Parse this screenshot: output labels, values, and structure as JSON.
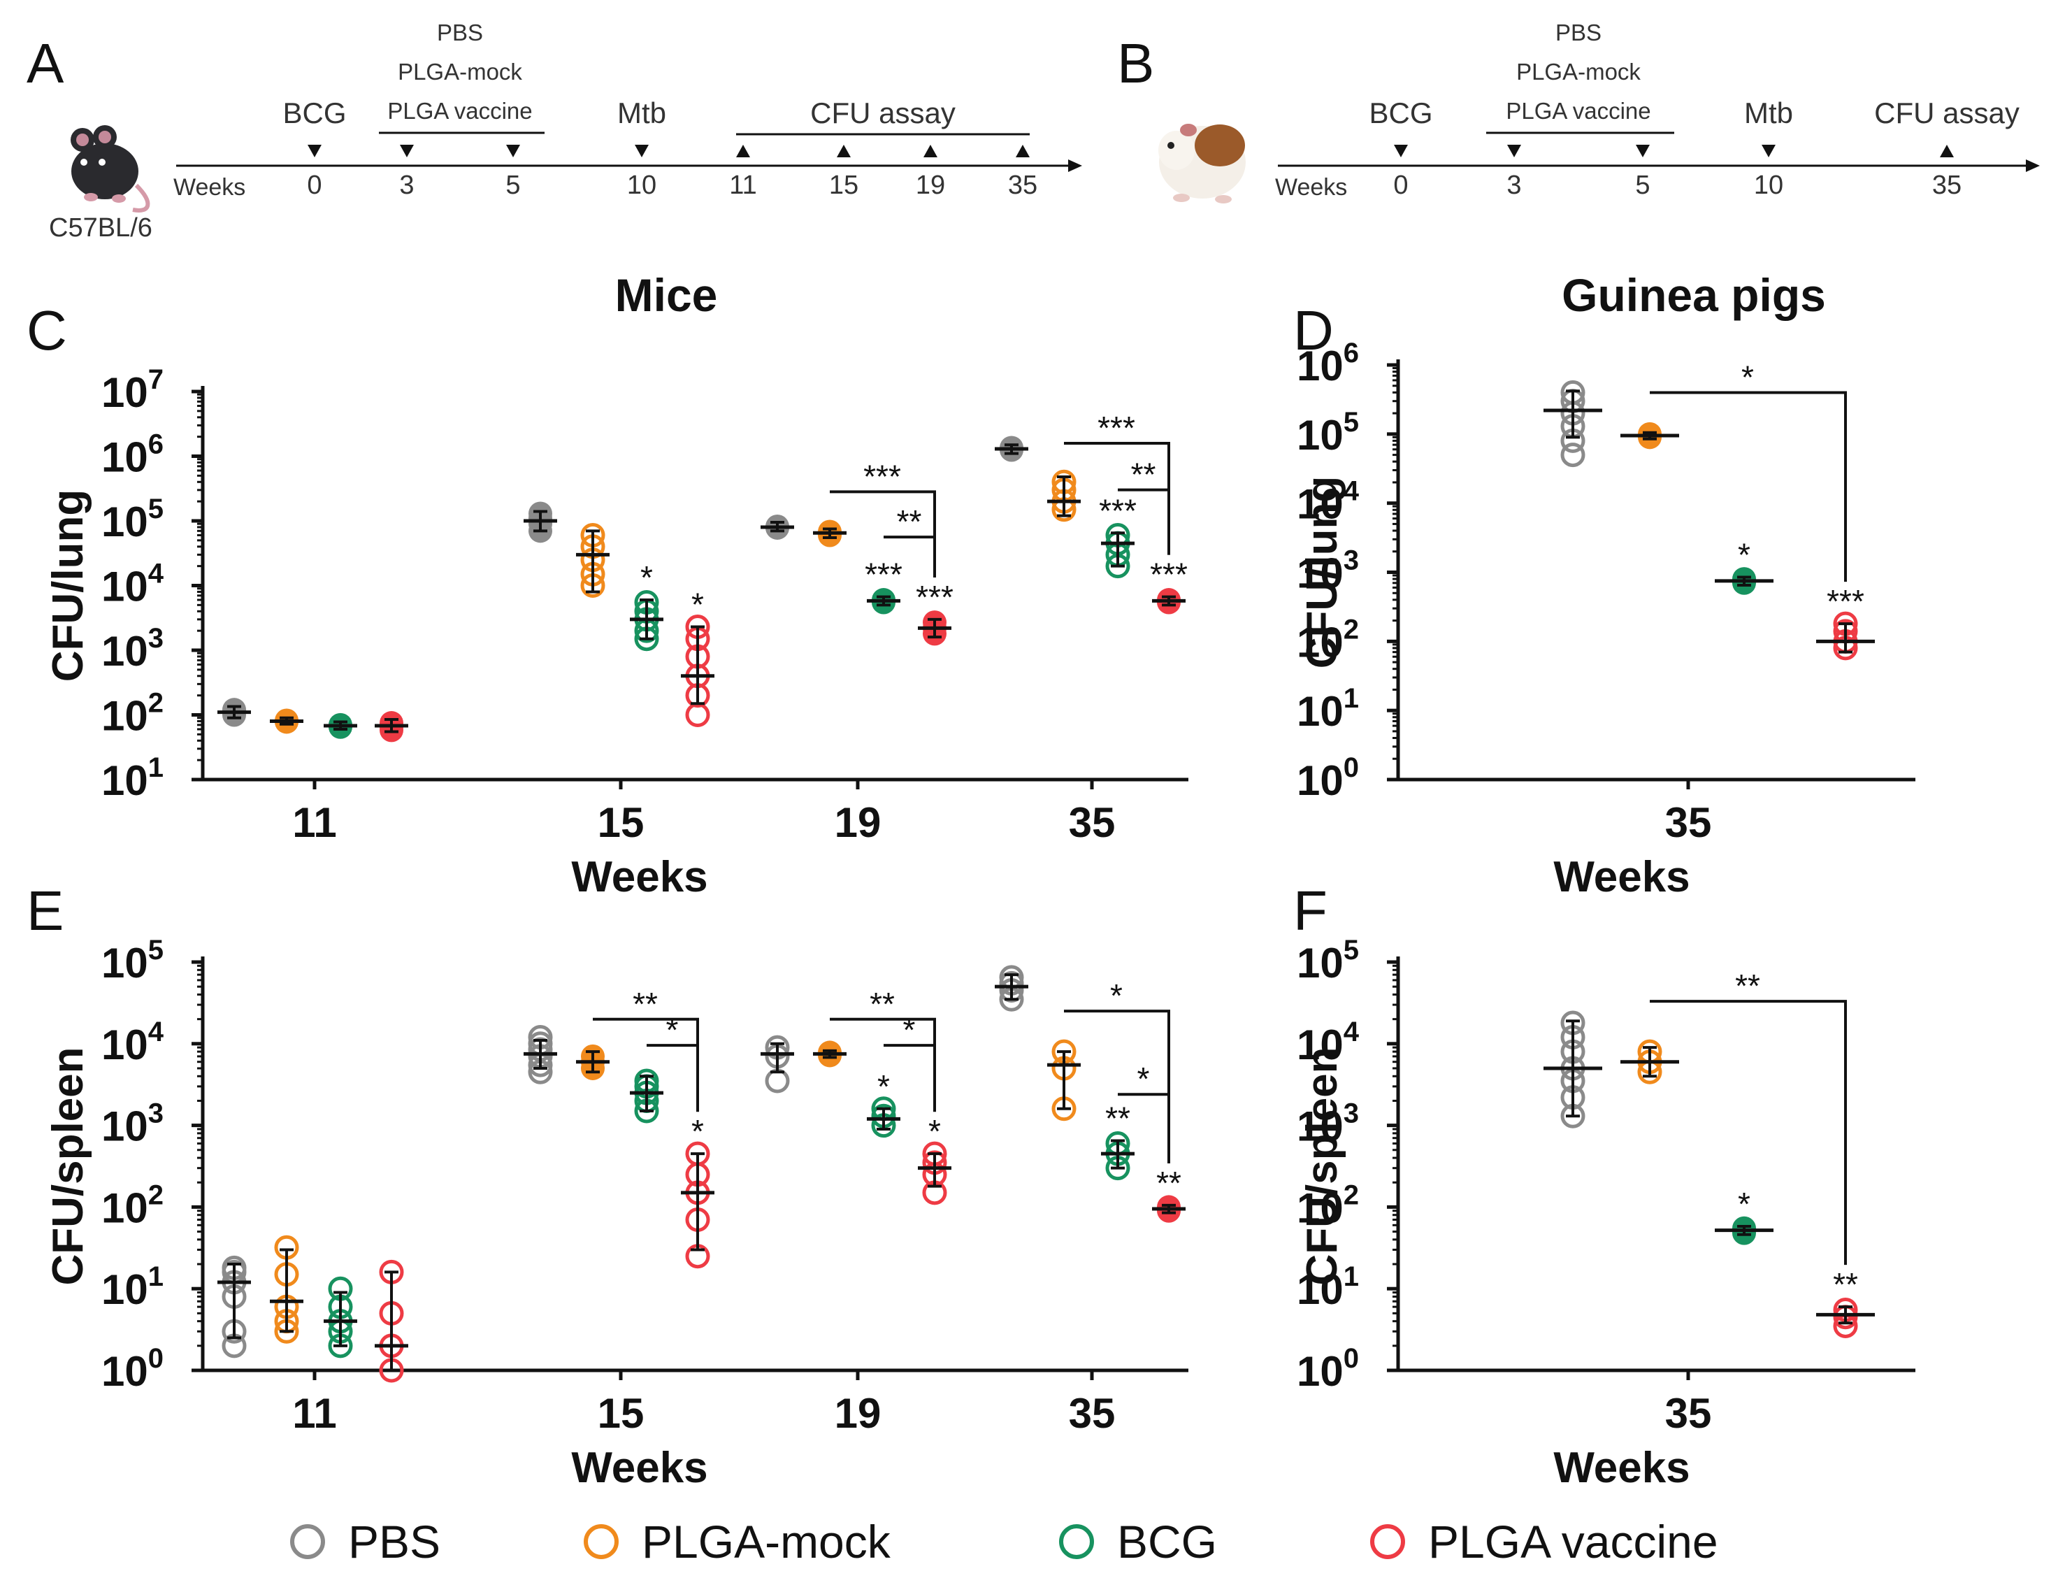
{
  "colors": {
    "PBS": "#8a8a8a",
    "PLGA-mock": "#f08a1c",
    "BCG": "#17925f",
    "PLGA vaccine": "#ee3b44",
    "axis": "#111111",
    "mouse_icon": "#2a2a2e",
    "guinea_pig_brown": "#9b5a2a"
  },
  "legend": [
    {
      "label": "PBS",
      "color_key": "PBS"
    },
    {
      "label": "PLGA-mock",
      "color_key": "PLGA-mock"
    },
    {
      "label": "BCG",
      "color_key": "BCG"
    },
    {
      "label": "PLGA vaccine",
      "color_key": "PLGA vaccine"
    }
  ],
  "timelines": [
    {
      "panel": "A",
      "animal_label": "C57BL/6",
      "animal_icon": "mouse-icon",
      "axis_label": "Weeks",
      "ticks": [
        {
          "label": "0",
          "w": 0,
          "event": "down"
        },
        {
          "label": "3",
          "w": 3,
          "event": "down"
        },
        {
          "label": "5",
          "w": 5,
          "event": "down"
        },
        {
          "label": "10",
          "w": 10,
          "event": "down"
        },
        {
          "label": "11",
          "w": 11,
          "event": "up"
        },
        {
          "label": "15",
          "w": 15,
          "event": "up"
        },
        {
          "label": "19",
          "w": 19,
          "event": "up"
        },
        {
          "label": "35",
          "w": 35,
          "event": "up"
        }
      ],
      "events": [
        {
          "label": "BCG",
          "at": [
            0
          ]
        },
        {
          "label": "PBS\nPLGA-mock\nPLGA vaccine",
          "at": [
            3,
            5
          ],
          "bracket": "below"
        },
        {
          "label": "Mtb",
          "at": [
            10
          ]
        },
        {
          "label": "CFU assay",
          "at": [
            11,
            35
          ],
          "bracket": "below"
        }
      ]
    },
    {
      "panel": "B",
      "animal_label": "",
      "animal_icon": "guinea-pig-icon",
      "axis_label": "Weeks",
      "ticks": [
        {
          "label": "0",
          "w": 0,
          "event": "down"
        },
        {
          "label": "3",
          "w": 3,
          "event": "down"
        },
        {
          "label": "5",
          "w": 5,
          "event": "down"
        },
        {
          "label": "10",
          "w": 10,
          "event": "down"
        },
        {
          "label": "35",
          "w": 35,
          "event": "up"
        }
      ],
      "events": [
        {
          "label": "BCG",
          "at": [
            0
          ]
        },
        {
          "label": "PBS\nPLGA-mock\nPLGA vaccine",
          "at": [
            3,
            5
          ],
          "bracket": "below"
        },
        {
          "label": "Mtb",
          "at": [
            10
          ]
        },
        {
          "label": "CFU assay",
          "at": [
            35
          ]
        }
      ]
    }
  ],
  "chart_data": [
    {
      "panel": "C",
      "type": "scatter",
      "title": "Mice",
      "xlabel": "Weeks",
      "ylabel": "CFU/lung",
      "yscale": "log",
      "ylim_log10": [
        1,
        7
      ],
      "categories": [
        "11",
        "15",
        "19",
        "35"
      ],
      "groups": [
        "PBS",
        "PLGA-mock",
        "BCG",
        "PLGA vaccine"
      ],
      "series": [
        {
          "week": "11",
          "group": "PBS",
          "filled": true,
          "mean": 110,
          "err": [
            90,
            135
          ],
          "points": [
            100,
            115,
            120
          ]
        },
        {
          "week": "11",
          "group": "PLGA-mock",
          "filled": true,
          "mean": 80,
          "err": [
            72,
            90
          ],
          "points": [
            78,
            82
          ]
        },
        {
          "week": "11",
          "group": "BCG",
          "filled": true,
          "mean": 68,
          "err": [
            60,
            78
          ],
          "points": [
            65,
            70
          ]
        },
        {
          "week": "11",
          "group": "PLGA vaccine",
          "filled": true,
          "mean": 68,
          "err": [
            55,
            85
          ],
          "points": [
            58,
            65,
            75
          ]
        },
        {
          "week": "15",
          "group": "PBS",
          "filled": true,
          "mean": 100000,
          "err": [
            70000,
            140000
          ],
          "points": [
            70000,
            90000,
            110000,
            130000
          ]
        },
        {
          "week": "15",
          "group": "PLGA-mock",
          "filled": false,
          "mean": 30000,
          "err": [
            8000,
            70000
          ],
          "points": [
            10000,
            15000,
            25000,
            40000,
            60000
          ]
        },
        {
          "week": "15",
          "group": "BCG",
          "filled": false,
          "mean": 3000,
          "err": [
            1500,
            6000
          ],
          "points": [
            1500,
            2000,
            3000,
            4000,
            5500
          ],
          "star": "*"
        },
        {
          "week": "15",
          "group": "PLGA vaccine",
          "filled": false,
          "mean": 400,
          "err": [
            150,
            2300
          ],
          "points": [
            100,
            200,
            400,
            800,
            1500,
            2300
          ],
          "star": "*"
        },
        {
          "week": "19",
          "group": "PBS",
          "filled": true,
          "mean": 80000,
          "err": [
            70000,
            95000
          ],
          "points": [
            78000,
            82000
          ]
        },
        {
          "week": "19",
          "group": "PLGA-mock",
          "filled": true,
          "mean": 65000,
          "err": [
            55000,
            75000
          ],
          "points": [
            60000,
            68000
          ]
        },
        {
          "week": "19",
          "group": "BCG",
          "filled": true,
          "mean": 5800,
          "err": [
            5000,
            6700
          ],
          "points": [
            5500,
            6000
          ],
          "star": "***"
        },
        {
          "week": "19",
          "group": "PLGA vaccine",
          "filled": true,
          "mean": 2200,
          "err": [
            1600,
            3000
          ],
          "points": [
            1800,
            2200,
            2700
          ],
          "star": "***"
        },
        {
          "week": "35",
          "group": "PBS",
          "filled": true,
          "mean": 1300000,
          "err": [
            1100000,
            1500000
          ],
          "points": [
            1250000,
            1350000
          ]
        },
        {
          "week": "35",
          "group": "PLGA-mock",
          "filled": false,
          "mean": 200000,
          "err": [
            120000,
            480000
          ],
          "points": [
            150000,
            200000,
            300000,
            400000
          ]
        },
        {
          "week": "35",
          "group": "BCG",
          "filled": false,
          "mean": 45000,
          "err": [
            20000,
            65000
          ],
          "points": [
            20000,
            30000,
            45000,
            60000
          ],
          "star": "***"
        },
        {
          "week": "35",
          "group": "PLGA vaccine",
          "filled": true,
          "mean": 5800,
          "err": [
            5000,
            6700
          ],
          "points": [
            5500,
            6000
          ],
          "star": "***"
        }
      ],
      "comparisons": [
        {
          "week": "19",
          "from": "PLGA-mock",
          "to": "PLGA vaccine",
          "label": "***",
          "y_log10": 5.45
        },
        {
          "week": "19",
          "from": "BCG",
          "to": "PLGA vaccine",
          "label": "**",
          "y_log10": 4.75
        },
        {
          "week": "35",
          "from": "PLGA-mock",
          "to": "PLGA vaccine",
          "label": "***",
          "y_log10": 6.2
        },
        {
          "week": "35",
          "from": "BCG",
          "to": "PLGA vaccine",
          "label": "**",
          "y_log10": 5.48
        }
      ]
    },
    {
      "panel": "D",
      "type": "scatter",
      "title": "Guinea pigs",
      "xlabel": "Weeks",
      "ylabel": "CFU/lung",
      "yscale": "log",
      "ylim_log10": [
        0,
        6
      ],
      "categories": [
        "35"
      ],
      "groups": [
        "PBS",
        "PLGA-mock",
        "BCG",
        "PLGA vaccine"
      ],
      "series": [
        {
          "week": "35",
          "group": "PBS",
          "filled": false,
          "mean": 220000,
          "err": [
            90000,
            420000
          ],
          "points": [
            50000,
            80000,
            130000,
            200000,
            300000,
            400000
          ]
        },
        {
          "week": "35",
          "group": "PLGA-mock",
          "filled": true,
          "mean": 95000,
          "err": [
            85000,
            105000
          ],
          "points": [
            90000,
            100000
          ]
        },
        {
          "week": "35",
          "group": "BCG",
          "filled": true,
          "mean": 750,
          "err": [
            650,
            850
          ],
          "points": [
            700,
            800
          ],
          "star": "*"
        },
        {
          "week": "35",
          "group": "PLGA vaccine",
          "filled": false,
          "mean": 100,
          "err": [
            70,
            180
          ],
          "points": [
            80,
            100,
            140,
            180
          ],
          "star": "***"
        }
      ],
      "comparisons": [
        {
          "week": "35",
          "from": "PLGA-mock",
          "to": "PLGA vaccine",
          "label": "*",
          "y_log10": 5.6
        }
      ]
    },
    {
      "panel": "E",
      "type": "scatter",
      "title": "",
      "xlabel": "Weeks",
      "ylabel": "CFU/spleen",
      "yscale": "log",
      "ylim_log10": [
        0,
        5
      ],
      "categories": [
        "11",
        "15",
        "19",
        "35"
      ],
      "groups": [
        "PBS",
        "PLGA-mock",
        "BCG",
        "PLGA vaccine"
      ],
      "series": [
        {
          "week": "11",
          "group": "PBS",
          "filled": false,
          "mean": 12,
          "err": [
            2.5,
            20
          ],
          "points": [
            2,
            3,
            8,
            12,
            16,
            18
          ]
        },
        {
          "week": "11",
          "group": "PLGA-mock",
          "filled": false,
          "mean": 7,
          "err": [
            3,
            30
          ],
          "points": [
            3,
            4,
            6,
            15,
            32
          ]
        },
        {
          "week": "11",
          "group": "BCG",
          "filled": false,
          "mean": 4,
          "err": [
            2,
            9
          ],
          "points": [
            2,
            3,
            4,
            6,
            10
          ]
        },
        {
          "week": "11",
          "group": "PLGA vaccine",
          "filled": false,
          "mean": 2,
          "err": [
            1,
            16
          ],
          "points": [
            1,
            2,
            5,
            16
          ]
        },
        {
          "week": "15",
          "group": "PBS",
          "filled": false,
          "mean": 7500,
          "err": [
            5000,
            11000
          ],
          "points": [
            4500,
            5500,
            7000,
            8500,
            10000,
            12000
          ]
        },
        {
          "week": "15",
          "group": "PLGA-mock",
          "filled": true,
          "mean": 6000,
          "err": [
            4500,
            8000
          ],
          "points": [
            5000,
            6000,
            7000
          ]
        },
        {
          "week": "15",
          "group": "BCG",
          "filled": false,
          "mean": 2500,
          "err": [
            1500,
            4000
          ],
          "points": [
            1500,
            2000,
            2500,
            3000,
            3500
          ]
        },
        {
          "week": "15",
          "group": "PLGA vaccine",
          "filled": false,
          "mean": 150,
          "err": [
            30,
            450
          ],
          "points": [
            25,
            70,
            150,
            250,
            450
          ],
          "star": "*"
        },
        {
          "week": "19",
          "group": "PBS",
          "filled": false,
          "mean": 7500,
          "err": [
            4500,
            10000
          ],
          "points": [
            3500,
            7000,
            9000
          ]
        },
        {
          "week": "19",
          "group": "PLGA-mock",
          "filled": true,
          "mean": 7500,
          "err": [
            6800,
            8200
          ],
          "points": [
            7200,
            7800
          ]
        },
        {
          "week": "19",
          "group": "BCG",
          "filled": false,
          "mean": 1200,
          "err": [
            900,
            1600
          ],
          "points": [
            1000,
            1300,
            1600
          ],
          "star": "*"
        },
        {
          "week": "19",
          "group": "PLGA vaccine",
          "filled": false,
          "mean": 300,
          "err": [
            180,
            450
          ],
          "points": [
            150,
            250,
            350,
            450
          ],
          "star": "*"
        },
        {
          "week": "35",
          "group": "PBS",
          "filled": false,
          "mean": 50000,
          "err": [
            35000,
            70000
          ],
          "points": [
            35000,
            45000,
            55000,
            65000
          ]
        },
        {
          "week": "35",
          "group": "PLGA-mock",
          "filled": false,
          "mean": 5500,
          "err": [
            1600,
            8000
          ],
          "points": [
            1600,
            5000,
            8000
          ]
        },
        {
          "week": "35",
          "group": "BCG",
          "filled": false,
          "mean": 450,
          "err": [
            300,
            650
          ],
          "points": [
            300,
            450,
            600
          ],
          "star": "**"
        },
        {
          "week": "35",
          "group": "PLGA vaccine",
          "filled": true,
          "mean": 95,
          "err": [
            85,
            105
          ],
          "points": [
            90,
            100
          ],
          "star": "**"
        }
      ],
      "comparisons": [
        {
          "week": "15",
          "from": "PLGA-mock",
          "to": "PLGA vaccine",
          "label": "**",
          "y_log10": 4.3
        },
        {
          "week": "15",
          "from": "BCG",
          "to": "PLGA vaccine",
          "label": "*",
          "y_log10": 3.98
        },
        {
          "week": "19",
          "from": "PLGA-mock",
          "to": "PLGA vaccine",
          "label": "**",
          "y_log10": 4.3
        },
        {
          "week": "19",
          "from": "BCG",
          "to": "PLGA vaccine",
          "label": "*",
          "y_log10": 3.98
        },
        {
          "week": "35",
          "from": "PLGA-mock",
          "to": "PLGA vaccine",
          "label": "*",
          "y_log10": 4.4
        },
        {
          "week": "35",
          "from": "BCG",
          "to": "PLGA vaccine",
          "label": "*",
          "y_log10": 3.38
        }
      ]
    },
    {
      "panel": "F",
      "type": "scatter",
      "title": "",
      "xlabel": "Weeks",
      "ylabel": "CFU/spleen",
      "yscale": "log",
      "ylim_log10": [
        0,
        5
      ],
      "categories": [
        "35"
      ],
      "groups": [
        "PBS",
        "PLGA-mock",
        "BCG",
        "PLGA vaccine"
      ],
      "series": [
        {
          "week": "35",
          "group": "PBS",
          "filled": false,
          "mean": 5000,
          "err": [
            1300,
            19000
          ],
          "points": [
            1300,
            2200,
            3500,
            5000,
            8000,
            12000,
            18000
          ]
        },
        {
          "week": "35",
          "group": "PLGA-mock",
          "filled": false,
          "mean": 6000,
          "err": [
            4000,
            9000
          ],
          "points": [
            4500,
            6000,
            8000
          ]
        },
        {
          "week": "35",
          "group": "BCG",
          "filled": true,
          "mean": 52,
          "err": [
            46,
            58
          ],
          "points": [
            48,
            55
          ],
          "star": "*"
        },
        {
          "week": "35",
          "group": "PLGA vaccine",
          "filled": false,
          "mean": 4.8,
          "err": [
            3.8,
            6
          ],
          "points": [
            3.5,
            4.5,
            5.5
          ],
          "star": "**"
        }
      ],
      "comparisons": [
        {
          "week": "35",
          "from": "PLGA-mock",
          "to": "PLGA vaccine",
          "label": "**",
          "y_log10": 4.52
        }
      ]
    }
  ]
}
